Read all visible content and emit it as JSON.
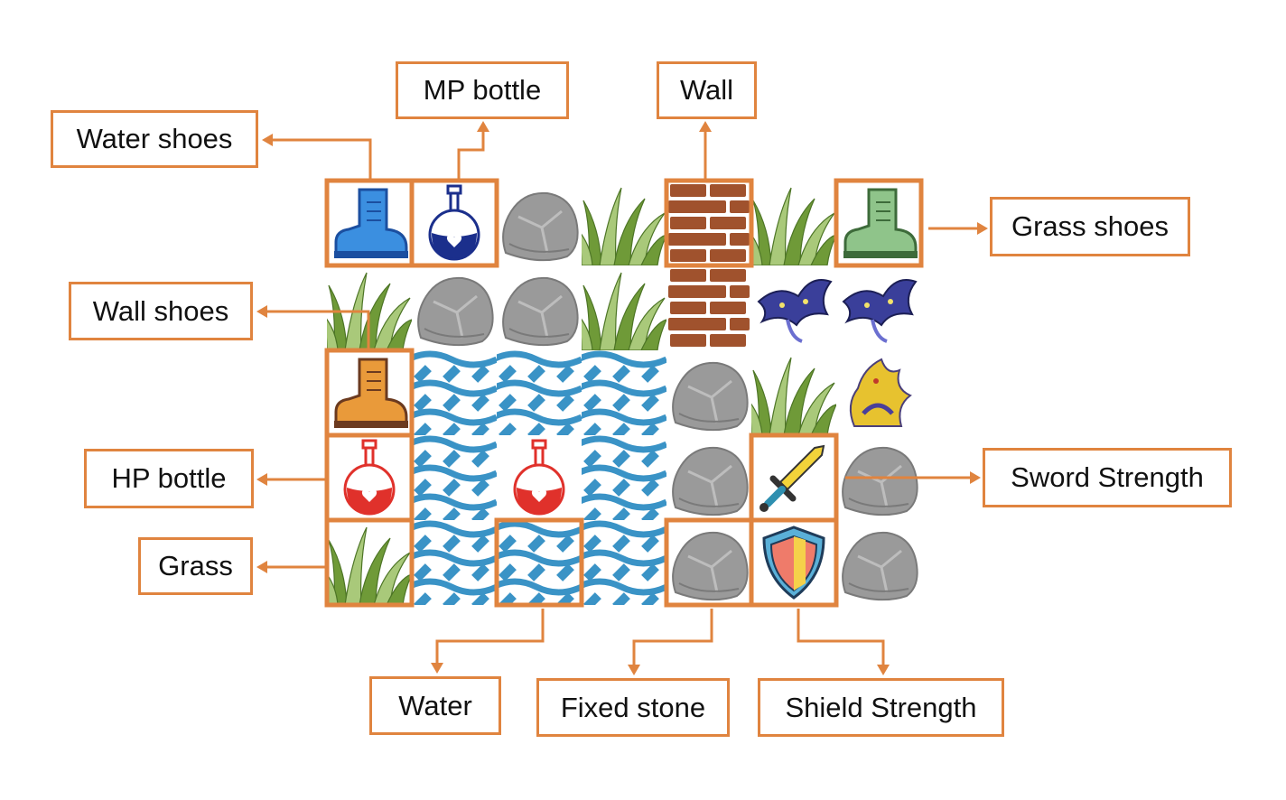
{
  "colors": {
    "accent": "#e0843f",
    "grass": "#6f9a38",
    "grass_light": "#a9c97a",
    "stone": "#9a9a9a",
    "stone_dark": "#7a7a7a",
    "brick": "#a0522d",
    "water": "#3a93c6",
    "hp_red": "#e0312b",
    "mp_blue": "#1b2f8c"
  },
  "grid": {
    "columns": 7,
    "rows": 5,
    "cells": [
      [
        "water-shoes",
        "mp-bottle",
        "stone",
        "grass",
        "wall",
        "grass",
        "grass-shoes"
      ],
      [
        "grass",
        "stone",
        "stone",
        "grass",
        "wall",
        "monster-blue",
        "monster-blue"
      ],
      [
        "wall-shoes",
        "water",
        "water",
        "water",
        "stone",
        "grass",
        "monster-yellow"
      ],
      [
        "hp-bottle",
        "water",
        "hp-bottle",
        "water",
        "stone",
        "sword",
        "stone"
      ],
      [
        "grass",
        "water",
        "water",
        "water",
        "stone",
        "shield",
        "stone"
      ]
    ],
    "highlighted": [
      {
        "name": "water-shoes",
        "row": 0,
        "col": 0
      },
      {
        "name": "mp-bottle",
        "row": 0,
        "col": 1
      },
      {
        "name": "wall",
        "row": 0,
        "col": 4
      },
      {
        "name": "grass-shoes",
        "row": 0,
        "col": 6
      },
      {
        "name": "wall-shoes",
        "row": 2,
        "col": 0
      },
      {
        "name": "hp-bottle",
        "row": 3,
        "col": 0
      },
      {
        "name": "sword",
        "row": 3,
        "col": 5
      },
      {
        "name": "grass",
        "row": 4,
        "col": 0
      },
      {
        "name": "water",
        "row": 4,
        "col": 2
      },
      {
        "name": "fixed-stone",
        "row": 4,
        "col": 4
      },
      {
        "name": "shield",
        "row": 4,
        "col": 5
      }
    ]
  },
  "labels": {
    "mp_bottle": "MP bottle",
    "wall": "Wall",
    "water_shoes": "Water shoes",
    "grass_shoes": "Grass shoes",
    "wall_shoes": "Wall shoes",
    "hp_bottle": "HP bottle",
    "sword_strength": "Sword Strength",
    "grass": "Grass",
    "water": "Water",
    "fixed_stone": "Fixed stone",
    "shield_strength": "Shield Strength"
  }
}
